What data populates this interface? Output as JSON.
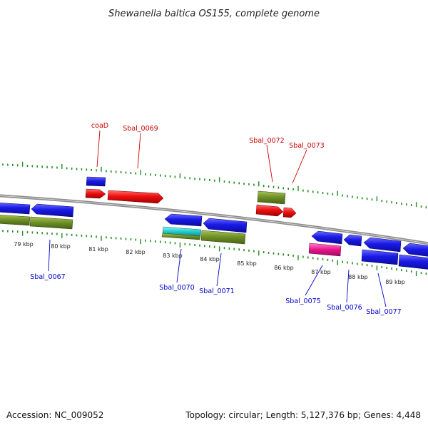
{
  "title": "Shewanella baltica OS155, complete genome",
  "footer": {
    "accession": "Accession: NC_009052",
    "topology": "Topology: circular; Length: 5,127,376 bp; Genes: 4,448"
  },
  "colors": {
    "forward_gene": "#ee1111",
    "reverse_gene": "#1a1ae6",
    "cds_green": "#6b8e23",
    "rna_cyan": "#22cccc",
    "pseudo_magenta": "#e6148c",
    "top_label": "#cc0000",
    "bottom_label": "#0000cc",
    "tick": "#228b22",
    "backbone": "#8c8c8c"
  },
  "kbp_labels": [
    "79 kbp",
    "80 kbp",
    "81 kbp",
    "82 kbp",
    "83 kbp",
    "84 kbp",
    "85 kbp",
    "86 kbp",
    "87 kbp",
    "88 kbp",
    "89 kbp"
  ],
  "top_gene_labels": [
    "coaD",
    "Sbal_0069",
    "Sbal_0072",
    "Sbal_0073"
  ],
  "bottom_gene_labels": [
    "Sbal_0067",
    "Sbal_0070",
    "Sbal_0071",
    "Sbal_0075",
    "Sbal_0076",
    "Sbal_0077"
  ]
}
